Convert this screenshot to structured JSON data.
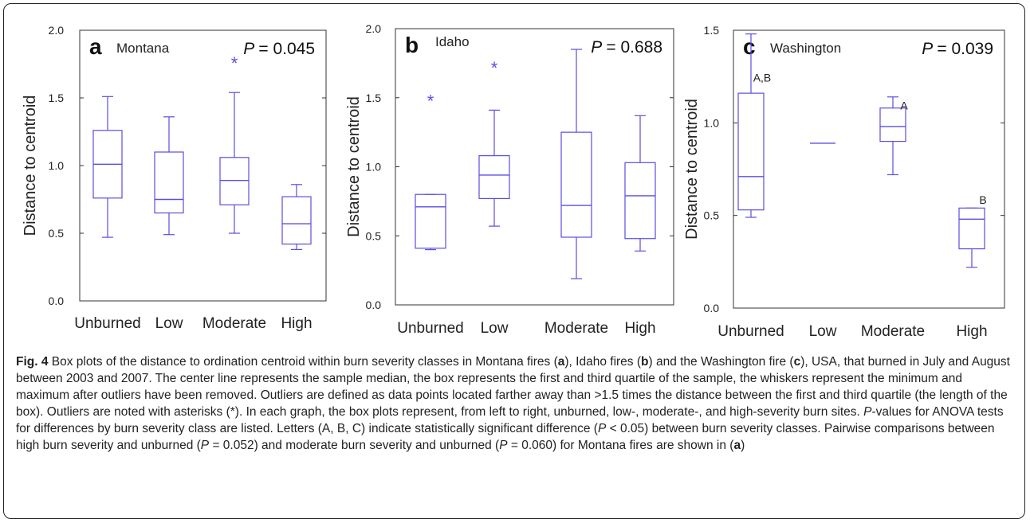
{
  "chart_data": [
    {
      "type": "box",
      "panel_letter": "a",
      "title": "Montana",
      "p_label": "P",
      "p_value": "= 0.045",
      "ylabel": "Distance to centroid",
      "ylim": [
        0,
        2.0
      ],
      "yticks": [
        "0.0",
        "0.5",
        "1.0",
        "1.5",
        "2.0"
      ],
      "ytick_values": [
        0,
        0.5,
        1.0,
        1.5,
        2.0
      ],
      "categories": [
        "Unburned",
        "Low",
        "Moderate",
        "High"
      ],
      "boxes": [
        {
          "min": 0.47,
          "q1": 0.76,
          "median": 1.01,
          "q3": 1.26,
          "max": 1.51
        },
        {
          "min": 0.49,
          "q1": 0.65,
          "median": 0.75,
          "q3": 1.1,
          "max": 1.36
        },
        {
          "min": 0.5,
          "q1": 0.71,
          "median": 0.89,
          "q3": 1.06,
          "max": 1.54
        },
        {
          "min": 0.38,
          "q1": 0.42,
          "median": 0.57,
          "q3": 0.77,
          "max": 0.86
        }
      ],
      "outliers": [
        {
          "category": "Moderate",
          "value": 1.77
        }
      ],
      "letters": []
    },
    {
      "type": "box",
      "panel_letter": "b",
      "title": "Idaho",
      "p_label": "P",
      "p_value": "= 0.688",
      "ylabel": "Distance to centroid",
      "ylim": [
        0,
        2.0
      ],
      "yticks": [
        "0.0",
        "0.5",
        "1.0",
        "1.5",
        "2.0"
      ],
      "ytick_values": [
        0,
        0.5,
        1.0,
        1.5,
        2.0
      ],
      "categories": [
        "Unburned",
        "Low",
        "Moderate",
        "High"
      ],
      "boxes": [
        {
          "min": 0.4,
          "q1": 0.41,
          "median": 0.71,
          "q3": 0.8,
          "max": 0.8
        },
        {
          "min": 0.57,
          "q1": 0.77,
          "median": 0.94,
          "q3": 1.08,
          "max": 1.41
        },
        {
          "min": 0.19,
          "q1": 0.49,
          "median": 0.72,
          "q3": 1.25,
          "max": 1.85
        },
        {
          "min": 0.39,
          "q1": 0.48,
          "median": 0.79,
          "q3": 1.03,
          "max": 1.37
        }
      ],
      "outliers": [
        {
          "category": "Unburned",
          "value": 1.49
        },
        {
          "category": "Low",
          "value": 1.73
        }
      ],
      "letters": []
    },
    {
      "type": "box",
      "panel_letter": "c",
      "title": "Washington",
      "p_label": "P",
      "p_value": "= 0.039",
      "ylabel": "Distance to centroid",
      "ylim": [
        0,
        1.5
      ],
      "yticks": [
        "0.0",
        "0.5",
        "1.0",
        "1.5"
      ],
      "ytick_values": [
        0,
        0.5,
        1.0,
        1.5
      ],
      "categories": [
        "Unburned",
        "Low",
        "Moderate",
        "High"
      ],
      "boxes": [
        {
          "min": 0.49,
          "q1": 0.53,
          "median": 0.71,
          "q3": 1.16,
          "max": 1.48
        },
        {
          "min": 0.89,
          "q1": 0.89,
          "median": 0.89,
          "q3": 0.89,
          "max": 0.89
        },
        {
          "min": 0.72,
          "q1": 0.9,
          "median": 0.98,
          "q3": 1.08,
          "max": 1.14
        },
        {
          "min": 0.22,
          "q1": 0.32,
          "median": 0.48,
          "q3": 0.54,
          "max": 0.54
        }
      ],
      "outliers": [],
      "letters": [
        {
          "category": "Unburned",
          "text": "A,B",
          "value": 1.24
        },
        {
          "category": "Moderate",
          "text": "A",
          "value": 1.09
        },
        {
          "category": "High",
          "text": "B",
          "value": 0.58
        }
      ]
    }
  ],
  "caption": {
    "fig_label": "Fig. 4",
    "t1": " Box plots of the distance to ordination centroid within burn severity classes in Montana fires (",
    "a1": "a",
    "t2": "), Idaho fires (",
    "b1": "b",
    "t3": ") and the Washington fire (",
    "c1": "c",
    "t4": "), USA, that burned in July and August between 2003 and 2007. The center line represents the sample median, the box represents the first and third quartile of the sample, the whiskers represent the minimum and maximum after outliers have been removed. Outliers are defined as data points located farther away than >1.5 times the distance between the first and third quartile (the length of the box). Outliers are noted with asterisks (*). In each graph, the box plots represent, from left to right, unburned, low-, moderate-, and high-severity burn sites. ",
    "p1": "P",
    "t5": "-values for ANOVA tests for differences by burn severity class are listed. Letters (A, B, C) indicate statistically significant difference (",
    "p2": "P",
    "t6": " < 0.05) between burn severity classes. Pairwise comparisons between high burn severity and unburned (",
    "p3": "P",
    "t7": " = 0.052) and moderate burn severity and unburned (",
    "p4": "P",
    "t8": " = 0.060) for Montana fires are shown in (",
    "a2": "a",
    "t9": ")"
  }
}
